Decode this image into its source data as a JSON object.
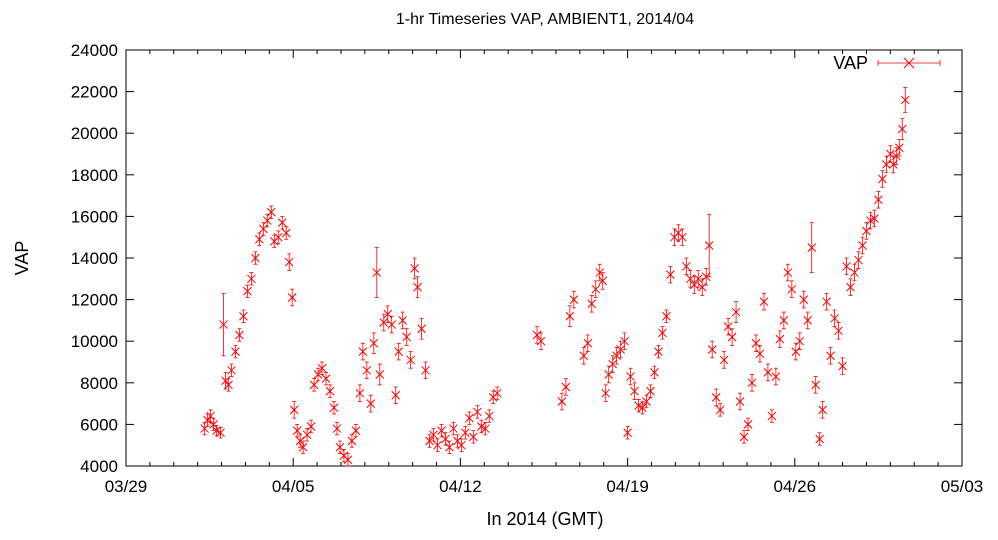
{
  "chart_data": {
    "type": "scatter",
    "title": "1-hr Timeseries VAP, AMBIENT1, 2014/04",
    "xlabel": "In 2014 (GMT)",
    "ylabel": "VAP",
    "x_unit": "day",
    "xlim": [
      "2014-03-29",
      "2014-05-03"
    ],
    "ylim": [
      4000,
      24000
    ],
    "x_ticks": [
      "03/29",
      "04/05",
      "04/12",
      "04/19",
      "04/26",
      "05/03"
    ],
    "y_ticks": [
      4000,
      6000,
      8000,
      10000,
      12000,
      14000,
      16000,
      18000,
      20000,
      22000,
      24000
    ],
    "grid": false,
    "legend_position": "top-right",
    "colors": {
      "series": "#ff0000",
      "axis": "#000000",
      "background": "#ffffff"
    },
    "series": [
      {
        "name": "VAP",
        "marker": "x",
        "error_bars": true,
        "points": [
          [
            "2014-04-01 07:00",
            5800,
            300
          ],
          [
            "2014-04-01 10:00",
            6200,
            300
          ],
          [
            "2014-04-01 13:00",
            6400,
            300
          ],
          [
            "2014-04-01 16:00",
            6000,
            300
          ],
          [
            "2014-04-01 19:00",
            5700,
            250
          ],
          [
            "2014-04-01 23:00",
            5600,
            250
          ],
          [
            "2014-04-02 02:00",
            10800,
            1500
          ],
          [
            "2014-04-02 04:00",
            8100,
            400
          ],
          [
            "2014-04-02 07:00",
            7900,
            300
          ],
          [
            "2014-04-02 10:00",
            8600,
            300
          ],
          [
            "2014-04-02 14:00",
            9500,
            300
          ],
          [
            "2014-04-02 18:00",
            10300,
            300
          ],
          [
            "2014-04-02 22:00",
            11200,
            300
          ],
          [
            "2014-04-03 02:00",
            12400,
            300
          ],
          [
            "2014-04-03 06:00",
            13000,
            300
          ],
          [
            "2014-04-03 10:00",
            14000,
            300
          ],
          [
            "2014-04-03 14:00",
            14900,
            300
          ],
          [
            "2014-04-03 18:00",
            15400,
            300
          ],
          [
            "2014-04-03 22:00",
            15800,
            300
          ],
          [
            "2014-04-04 02:00",
            16200,
            300
          ],
          [
            "2014-04-04 05:00",
            14800,
            300
          ],
          [
            "2014-04-04 09:00",
            15000,
            300
          ],
          [
            "2014-04-04 13:00",
            15700,
            300
          ],
          [
            "2014-04-04 17:00",
            15200,
            300
          ],
          [
            "2014-04-04 20:00",
            13800,
            400
          ],
          [
            "2014-04-04 23:00",
            12100,
            400
          ],
          [
            "2014-04-05 01:00",
            6700,
            400
          ],
          [
            "2014-04-05 04:00",
            5700,
            300
          ],
          [
            "2014-04-05 07:00",
            5200,
            300
          ],
          [
            "2014-04-05 10:00",
            4900,
            300
          ],
          [
            "2014-04-05 14:00",
            5500,
            300
          ],
          [
            "2014-04-05 18:00",
            5900,
            300
          ],
          [
            "2014-04-05 21:00",
            7900,
            300
          ],
          [
            "2014-04-06 01:00",
            8400,
            300
          ],
          [
            "2014-04-06 05:00",
            8700,
            300
          ],
          [
            "2014-04-06 09:00",
            8200,
            300
          ],
          [
            "2014-04-06 13:00",
            7600,
            300
          ],
          [
            "2014-04-06 17:00",
            6800,
            300
          ],
          [
            "2014-04-06 20:00",
            5800,
            300
          ],
          [
            "2014-04-06 23:00",
            4900,
            300
          ],
          [
            "2014-04-07 03:00",
            4500,
            300
          ],
          [
            "2014-04-07 07:00",
            4300,
            300
          ],
          [
            "2014-04-07 11:00",
            5200,
            300
          ],
          [
            "2014-04-07 15:00",
            5700,
            300
          ],
          [
            "2014-04-07 19:00",
            7500,
            400
          ],
          [
            "2014-04-07 22:00",
            9500,
            400
          ],
          [
            "2014-04-08 02:00",
            8600,
            400
          ],
          [
            "2014-04-08 06:00",
            7000,
            400
          ],
          [
            "2014-04-08 09:00",
            9900,
            500
          ],
          [
            "2014-04-08 12:00",
            13300,
            1200
          ],
          [
            "2014-04-08 15:00",
            8400,
            500
          ],
          [
            "2014-04-08 19:00",
            10900,
            400
          ],
          [
            "2014-04-08 23:00",
            11300,
            400
          ],
          [
            "2014-04-09 03:00",
            10800,
            400
          ],
          [
            "2014-04-09 07:00",
            7400,
            400
          ],
          [
            "2014-04-09 10:00",
            9500,
            400
          ],
          [
            "2014-04-09 14:00",
            11000,
            400
          ],
          [
            "2014-04-09 18:00",
            10200,
            400
          ],
          [
            "2014-04-09 22:00",
            9100,
            400
          ],
          [
            "2014-04-10 02:00",
            13500,
            500
          ],
          [
            "2014-04-10 05:00",
            12600,
            500
          ],
          [
            "2014-04-10 09:00",
            10600,
            500
          ],
          [
            "2014-04-10 13:00",
            8600,
            400
          ],
          [
            "2014-04-10 17:00",
            5200,
            300
          ],
          [
            "2014-04-10 21:00",
            5500,
            300
          ],
          [
            "2014-04-11 01:00",
            5000,
            300
          ],
          [
            "2014-04-11 05:00",
            5700,
            300
          ],
          [
            "2014-04-11 09:00",
            5300,
            300
          ],
          [
            "2014-04-11 13:00",
            4900,
            300
          ],
          [
            "2014-04-11 17:00",
            5800,
            300
          ],
          [
            "2014-04-11 21:00",
            5200,
            300
          ],
          [
            "2014-04-12 01:00",
            5000,
            300
          ],
          [
            "2014-04-12 05:00",
            5600,
            300
          ],
          [
            "2014-04-12 09:00",
            6300,
            300
          ],
          [
            "2014-04-12 13:00",
            5400,
            300
          ],
          [
            "2014-04-12 17:00",
            6600,
            300
          ],
          [
            "2014-04-12 21:00",
            5900,
            300
          ],
          [
            "2014-04-13 01:00",
            5800,
            300
          ],
          [
            "2014-04-13 05:00",
            6400,
            300
          ],
          [
            "2014-04-13 09:00",
            7300,
            300
          ],
          [
            "2014-04-13 13:00",
            7500,
            300
          ],
          [
            "2014-04-15 05:00",
            10300,
            400
          ],
          [
            "2014-04-15 09:00",
            10000,
            400
          ],
          [
            "2014-04-16 06:00",
            7100,
            400
          ],
          [
            "2014-04-16 10:00",
            7800,
            400
          ],
          [
            "2014-04-16 14:00",
            11200,
            500
          ],
          [
            "2014-04-16 18:00",
            12000,
            400
          ],
          [
            "2014-04-17 04:00",
            9300,
            400
          ],
          [
            "2014-04-17 08:00",
            9900,
            400
          ],
          [
            "2014-04-17 12:00",
            11800,
            400
          ],
          [
            "2014-04-17 16:00",
            12500,
            400
          ],
          [
            "2014-04-17 20:00",
            13300,
            400
          ],
          [
            "2014-04-17 23:00",
            12900,
            400
          ],
          [
            "2014-04-18 02:00",
            7500,
            400
          ],
          [
            "2014-04-18 05:00",
            8400,
            400
          ],
          [
            "2014-04-18 09:00",
            8900,
            400
          ],
          [
            "2014-04-18 13:00",
            9300,
            400
          ],
          [
            "2014-04-18 17:00",
            9600,
            400
          ],
          [
            "2014-04-18 21:00",
            10000,
            400
          ],
          [
            "2014-04-19 00:00",
            5600,
            300
          ],
          [
            "2014-04-19 03:00",
            8300,
            400
          ],
          [
            "2014-04-19 07:00",
            7600,
            400
          ],
          [
            "2014-04-19 11:00",
            6900,
            300
          ],
          [
            "2014-04-19 15:00",
            6800,
            300
          ],
          [
            "2014-04-19 19:00",
            7100,
            300
          ],
          [
            "2014-04-19 23:00",
            7600,
            300
          ],
          [
            "2014-04-20 03:00",
            8500,
            300
          ],
          [
            "2014-04-20 07:00",
            9500,
            300
          ],
          [
            "2014-04-20 11:00",
            10400,
            300
          ],
          [
            "2014-04-20 15:00",
            11200,
            300
          ],
          [
            "2014-04-20 19:00",
            13200,
            400
          ],
          [
            "2014-04-20 23:00",
            15000,
            400
          ],
          [
            "2014-04-21 03:00",
            15200,
            400
          ],
          [
            "2014-04-21 07:00",
            15000,
            400
          ],
          [
            "2014-04-21 11:00",
            13600,
            400
          ],
          [
            "2014-04-21 15:00",
            13000,
            400
          ],
          [
            "2014-04-21 19:00",
            12700,
            400
          ],
          [
            "2014-04-21 23:00",
            13000,
            400
          ],
          [
            "2014-04-22 03:00",
            12600,
            400
          ],
          [
            "2014-04-22 07:00",
            13100,
            400
          ],
          [
            "2014-04-22 10:00",
            14600,
            1500
          ],
          [
            "2014-04-22 13:00",
            9600,
            400
          ],
          [
            "2014-04-22 17:00",
            7300,
            400
          ],
          [
            "2014-04-22 21:00",
            6700,
            300
          ],
          [
            "2014-04-23 01:00",
            9100,
            400
          ],
          [
            "2014-04-23 05:00",
            10700,
            400
          ],
          [
            "2014-04-23 09:00",
            10200,
            400
          ],
          [
            "2014-04-23 13:00",
            11400,
            500
          ],
          [
            "2014-04-23 17:00",
            7100,
            400
          ],
          [
            "2014-04-23 21:00",
            5400,
            300
          ],
          [
            "2014-04-24 01:00",
            6000,
            300
          ],
          [
            "2014-04-24 05:00",
            8000,
            400
          ],
          [
            "2014-04-24 09:00",
            9900,
            400
          ],
          [
            "2014-04-24 13:00",
            9400,
            400
          ],
          [
            "2014-04-24 17:00",
            11900,
            400
          ],
          [
            "2014-04-24 21:00",
            8500,
            400
          ],
          [
            "2014-04-25 01:00",
            6400,
            300
          ],
          [
            "2014-04-25 05:00",
            8300,
            400
          ],
          [
            "2014-04-25 09:00",
            10100,
            400
          ],
          [
            "2014-04-25 13:00",
            11000,
            400
          ],
          [
            "2014-04-25 17:00",
            13300,
            400
          ],
          [
            "2014-04-25 21:00",
            12500,
            400
          ],
          [
            "2014-04-26 01:00",
            9500,
            400
          ],
          [
            "2014-04-26 05:00",
            10000,
            400
          ],
          [
            "2014-04-26 09:00",
            12000,
            400
          ],
          [
            "2014-04-26 13:00",
            11000,
            400
          ],
          [
            "2014-04-26 17:00",
            14500,
            1200
          ],
          [
            "2014-04-26 21:00",
            7900,
            400
          ],
          [
            "2014-04-27 01:00",
            5300,
            300
          ],
          [
            "2014-04-27 04:00",
            6700,
            400
          ],
          [
            "2014-04-27 08:00",
            11900,
            400
          ],
          [
            "2014-04-27 12:00",
            9300,
            400
          ],
          [
            "2014-04-27 16:00",
            11100,
            400
          ],
          [
            "2014-04-27 20:00",
            10500,
            400
          ],
          [
            "2014-04-28 00:00",
            8800,
            400
          ],
          [
            "2014-04-28 04:00",
            13600,
            400
          ],
          [
            "2014-04-28 08:00",
            12600,
            400
          ],
          [
            "2014-04-28 12:00",
            13300,
            400
          ],
          [
            "2014-04-28 16:00",
            13900,
            400
          ],
          [
            "2014-04-28 20:00",
            14600,
            400
          ],
          [
            "2014-04-29 00:00",
            15300,
            400
          ],
          [
            "2014-04-29 04:00",
            15800,
            400
          ],
          [
            "2014-04-29 08:00",
            15900,
            400
          ],
          [
            "2014-04-29 12:00",
            16800,
            400
          ],
          [
            "2014-04-29 16:00",
            17800,
            400
          ],
          [
            "2014-04-29 20:00",
            18500,
            400
          ],
          [
            "2014-04-30 00:00",
            19000,
            400
          ],
          [
            "2014-04-30 03:00",
            18500,
            400
          ],
          [
            "2014-04-30 06:00",
            18900,
            400
          ],
          [
            "2014-04-30 09:00",
            19300,
            400
          ],
          [
            "2014-04-30 12:00",
            20200,
            500
          ],
          [
            "2014-04-30 15:00",
            21600,
            600
          ]
        ]
      }
    ]
  }
}
